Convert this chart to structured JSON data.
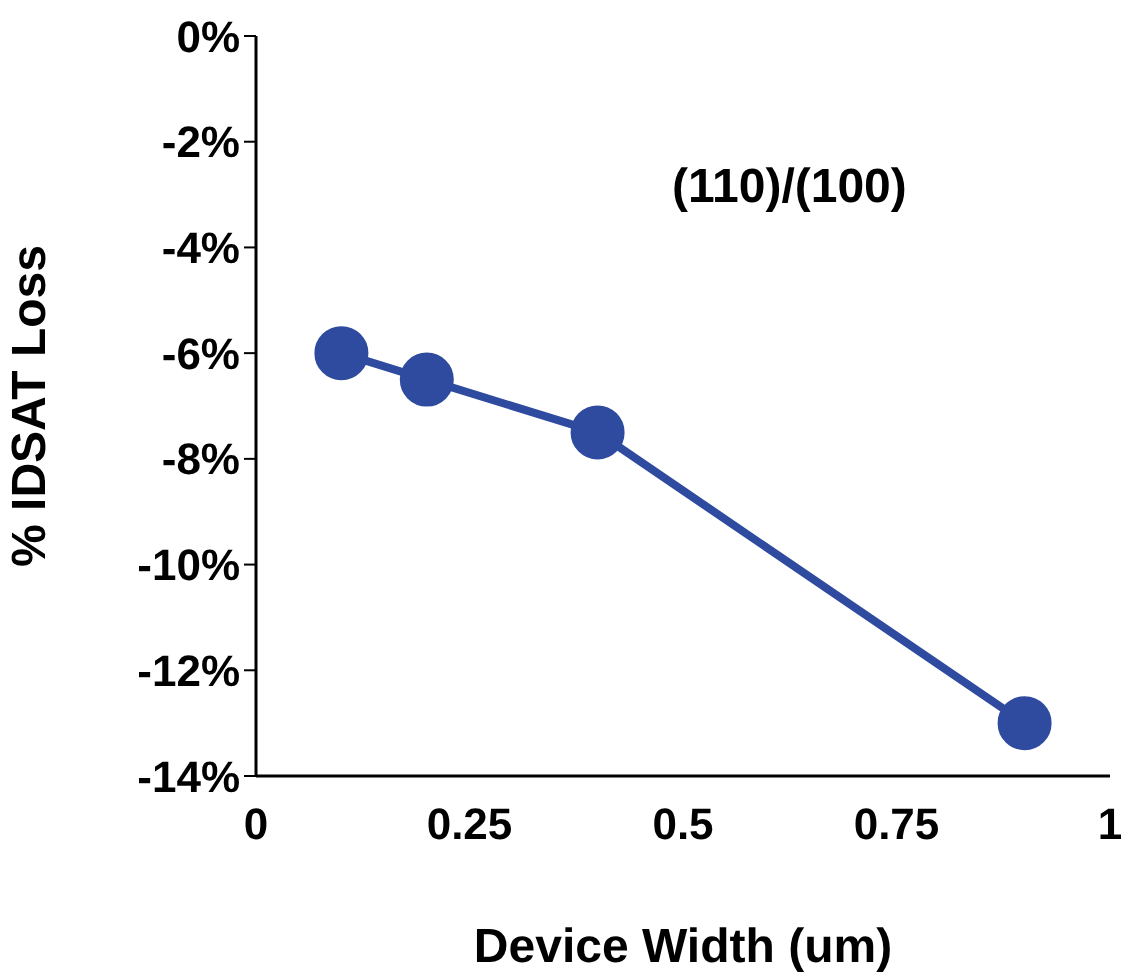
{
  "chart_data": {
    "type": "line",
    "xlabel": "Device Width (um)",
    "ylabel": "% IDSAT Loss",
    "x": [
      0.1,
      0.2,
      0.4,
      0.9
    ],
    "series": [
      {
        "color": "#2f4b9f",
        "values": [
          -6,
          -6.5,
          -7.5,
          -13
        ]
      }
    ],
    "xlim": [
      0,
      1
    ],
    "xticks": [
      0,
      0.25,
      0.5,
      0.75,
      1
    ],
    "ylim": [
      -14,
      0
    ],
    "yticks": [
      {
        "value": 0,
        "label": "0%"
      },
      {
        "value": -2,
        "label": "-2%"
      },
      {
        "value": -4,
        "label": "-4%"
      },
      {
        "value": -6,
        "label": "-6%"
      },
      {
        "value": -8,
        "label": "-8%"
      },
      {
        "value": -10,
        "label": "-10%"
      },
      {
        "value": -12,
        "label": "-12%"
      },
      {
        "value": -14,
        "label": "-14%"
      }
    ],
    "annotations": [
      "(110)/(100)"
    ],
    "grid": false,
    "legend": false,
    "marker": "circle",
    "line_style": "solid"
  }
}
